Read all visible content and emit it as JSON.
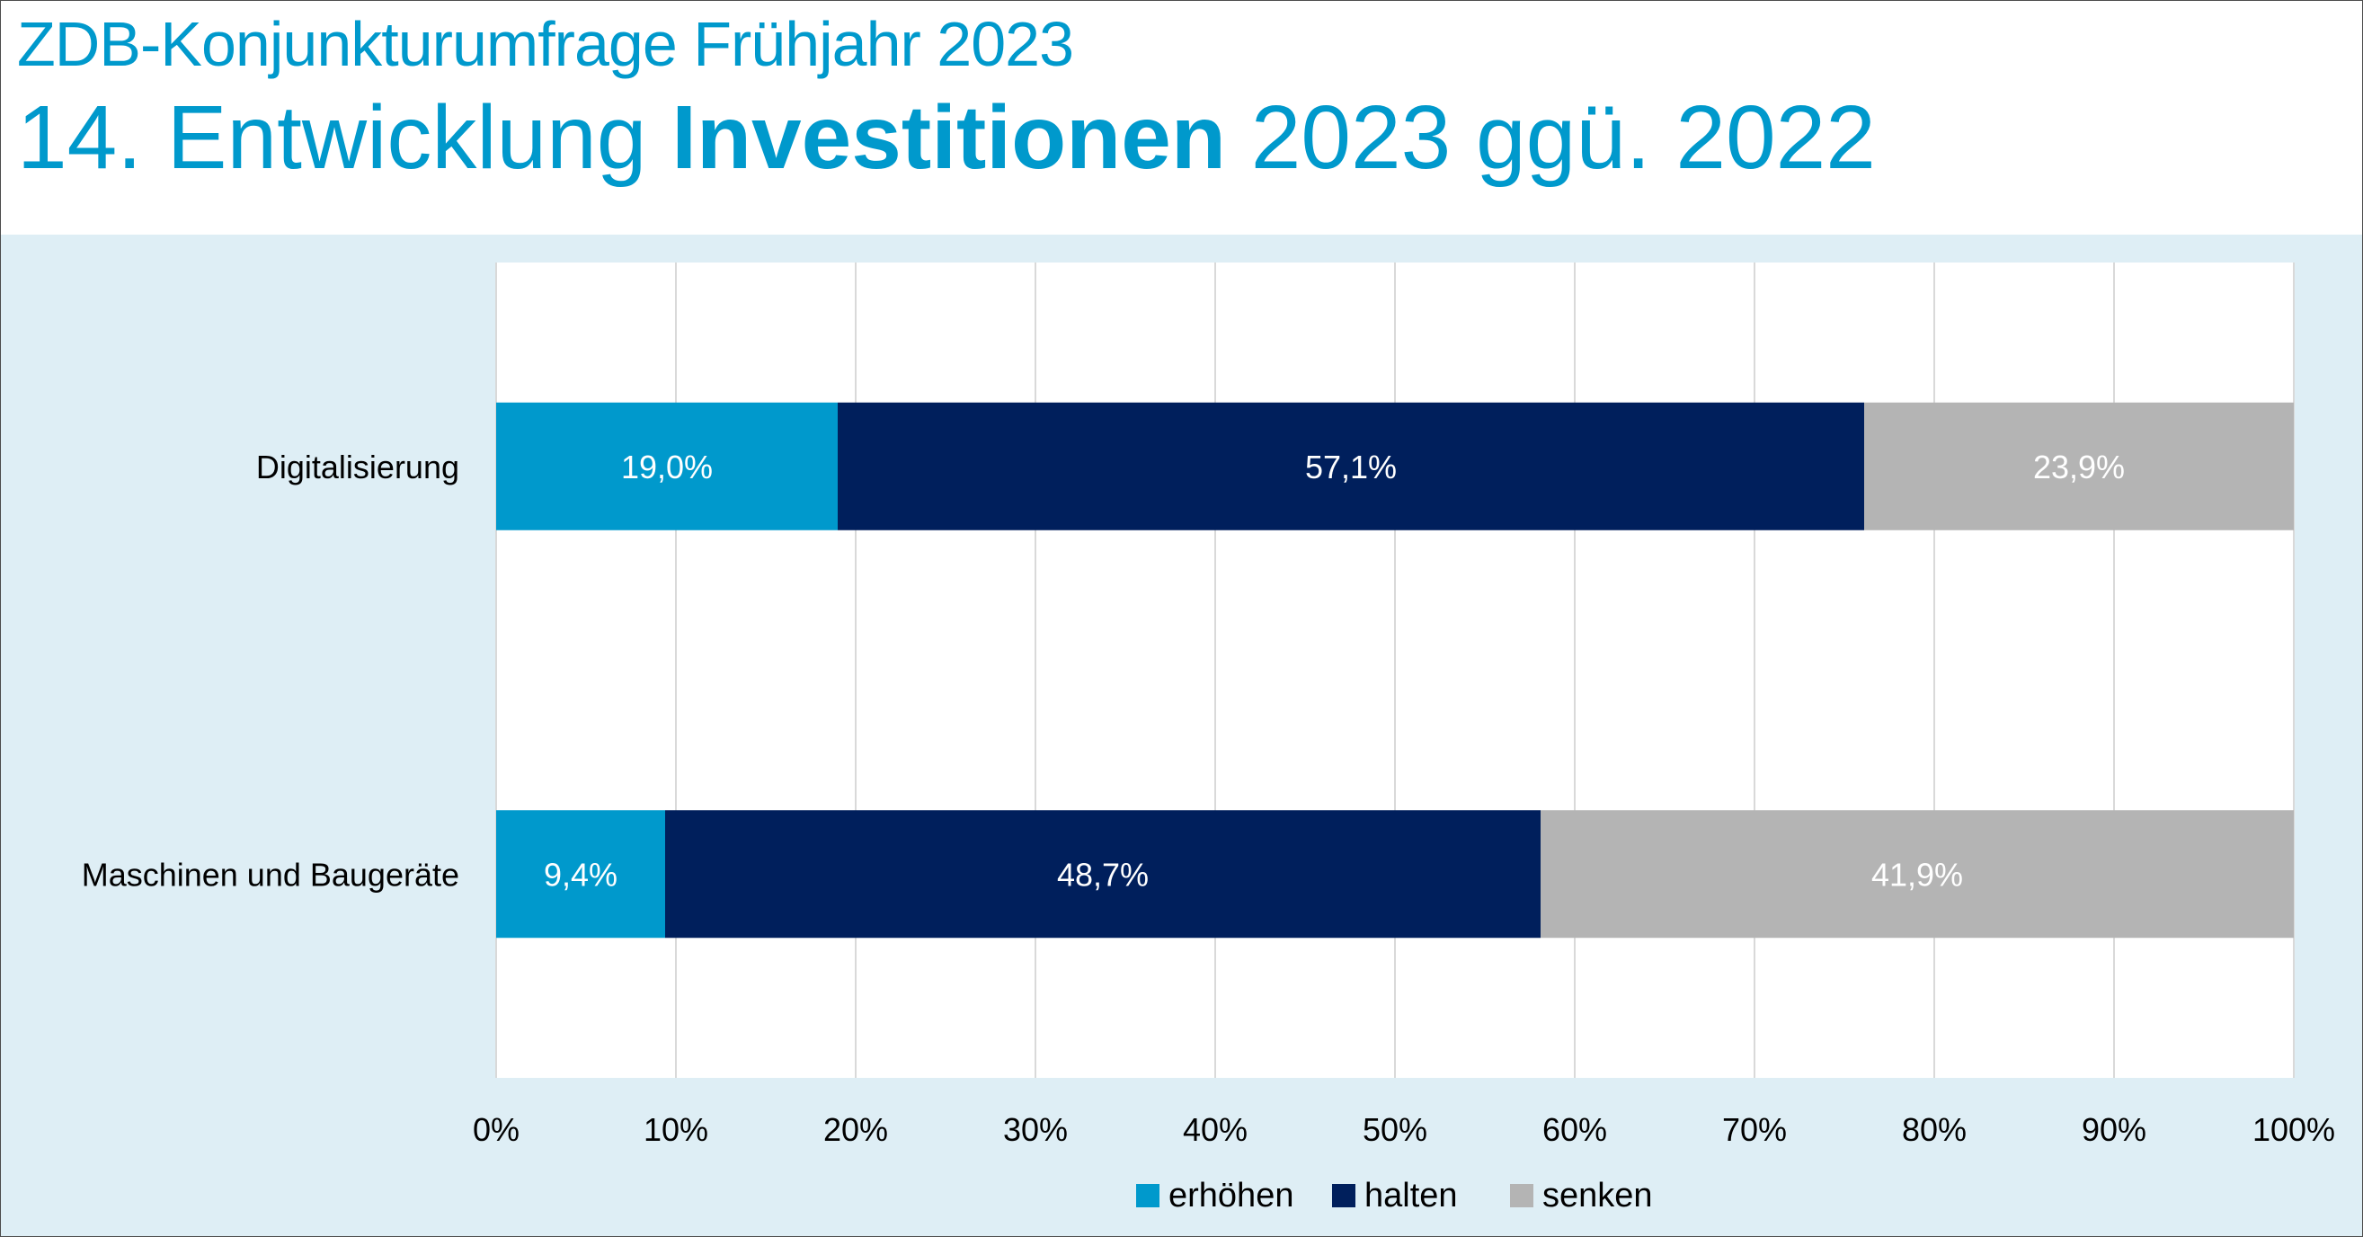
{
  "header": {
    "subtitle": "ZDB-Konjunkturumfrage Frühjahr 2023",
    "title_prefix": "14. Entwicklung ",
    "title_bold": "Investitionen",
    "title_suffix": " 2023 ggü. 2022"
  },
  "colors": {
    "accent": "#0099cc",
    "panel_bg": "#deeef5",
    "plot_bg": "#ffffff",
    "gridline": "#d9d9d9",
    "erhoehen": "#0099cc",
    "halten": "#001f5c",
    "senken": "#b4b4b4"
  },
  "chart_data": {
    "type": "bar",
    "orientation": "horizontal",
    "stacked": true,
    "categories": [
      "Digitalisierung",
      "Maschinen und Baugeräte"
    ],
    "series": [
      {
        "name": "erhöhen",
        "values": [
          19.0,
          9.4
        ],
        "labels": [
          "19,0%",
          "9,4%"
        ],
        "color": "#0099cc"
      },
      {
        "name": "halten",
        "values": [
          57.1,
          48.7
        ],
        "labels": [
          "57,1%",
          "48,7%"
        ],
        "color": "#001f5c"
      },
      {
        "name": "senken",
        "values": [
          23.9,
          41.9
        ],
        "labels": [
          "23,9%",
          "41,9%"
        ],
        "color": "#b4b4b4"
      }
    ],
    "xlim": [
      0,
      100
    ],
    "xticks": [
      0,
      10,
      20,
      30,
      40,
      50,
      60,
      70,
      80,
      90,
      100
    ],
    "xtick_labels": [
      "0%",
      "10%",
      "20%",
      "30%",
      "40%",
      "50%",
      "60%",
      "70%",
      "80%",
      "90%",
      "100%"
    ],
    "grid": true,
    "legend_position": "bottom"
  }
}
